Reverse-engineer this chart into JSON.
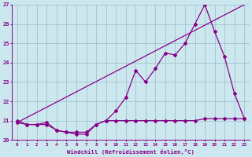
{
  "xlabel": "Windchill (Refroidissement éolien,°C)",
  "background_color": "#cce8ee",
  "line_color": "#880088",
  "grid_color": "#99bbcc",
  "xlim": [
    -0.5,
    23.5
  ],
  "ylim": [
    20,
    27
  ],
  "xticks": [
    0,
    1,
    2,
    3,
    4,
    5,
    6,
    7,
    8,
    9,
    10,
    11,
    12,
    13,
    14,
    15,
    16,
    17,
    18,
    19,
    20,
    21,
    22,
    23
  ],
  "yticks": [
    20,
    21,
    22,
    23,
    24,
    25,
    26,
    27
  ],
  "straight_line_x": [
    0,
    23
  ],
  "straight_line_y": [
    20.9,
    27.0
  ],
  "curve1_x": [
    0,
    1,
    2,
    3,
    4,
    5,
    6,
    7,
    8,
    9,
    10,
    11,
    12,
    13,
    14,
    15,
    16,
    17,
    18,
    19,
    20,
    21,
    22,
    23
  ],
  "curve1_y": [
    20.9,
    20.8,
    20.8,
    20.9,
    20.5,
    20.4,
    20.4,
    20.4,
    20.8,
    21.0,
    21.5,
    22.2,
    23.6,
    23.0,
    23.7,
    24.5,
    24.4,
    25.0,
    26.0,
    27.0,
    25.6,
    24.3,
    22.4,
    21.1
  ],
  "curve2_x": [
    0,
    1,
    2,
    3,
    4,
    5,
    6,
    7,
    8,
    9,
    10,
    11,
    12,
    13,
    14,
    15,
    16,
    17,
    18,
    19,
    20,
    21,
    22,
    23
  ],
  "curve2_y": [
    21.0,
    20.8,
    20.8,
    20.8,
    20.5,
    20.4,
    20.3,
    20.3,
    20.8,
    21.0,
    21.0,
    21.0,
    21.0,
    21.0,
    21.0,
    21.0,
    21.0,
    21.0,
    21.0,
    21.1,
    21.1,
    21.1,
    21.1,
    21.1
  ]
}
